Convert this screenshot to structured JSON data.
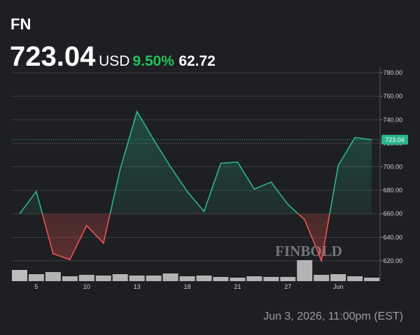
{
  "header": {
    "ticker": "FN",
    "price": "723.04",
    "currency": "USD",
    "change_pct": "9.50%",
    "change": "62.72"
  },
  "chart_data": {
    "type": "line",
    "categories": [
      null,
      "5",
      null,
      null,
      "10",
      null,
      null,
      "13",
      null,
      null,
      "18",
      null,
      null,
      "21",
      null,
      null,
      "27",
      null,
      null,
      "Jun",
      null,
      null
    ],
    "series": [
      {
        "color": "#2bb58f",
        "values": [
          660,
          679,
          626,
          621,
          650,
          635,
          698,
          747,
          723,
          700,
          679,
          662,
          703,
          704,
          681,
          687,
          668,
          655,
          620,
          701,
          725,
          723.04
        ]
      }
    ],
    "below_color": "#ef5350",
    "volume": {
      "color": "#d9d9d9",
      "values": [
        16,
        10,
        13,
        7,
        9,
        8,
        10,
        8,
        8,
        11,
        7,
        8,
        6,
        5,
        7,
        6,
        6,
        30,
        9,
        10,
        7,
        5
      ]
    },
    "ylim": [
      602.7,
      785.4
    ],
    "yticks": [
      {
        "value": 620,
        "label": "620.00"
      },
      {
        "value": 640,
        "label": "640.00"
      },
      {
        "value": 660,
        "label": "660.00"
      },
      {
        "value": 680,
        "label": "680.00"
      },
      {
        "value": 700,
        "label": "700.00"
      },
      {
        "value": 720,
        "label": "720.00"
      },
      {
        "value": 740,
        "label": "740.00"
      },
      {
        "value": 760,
        "label": "760.00"
      },
      {
        "value": 780,
        "label": "780.00"
      }
    ],
    "grid": true,
    "watermark": "FINBOLD"
  },
  "footer": {
    "timestamp": "Jun 3, 2026, 11:00pm (EST)"
  }
}
